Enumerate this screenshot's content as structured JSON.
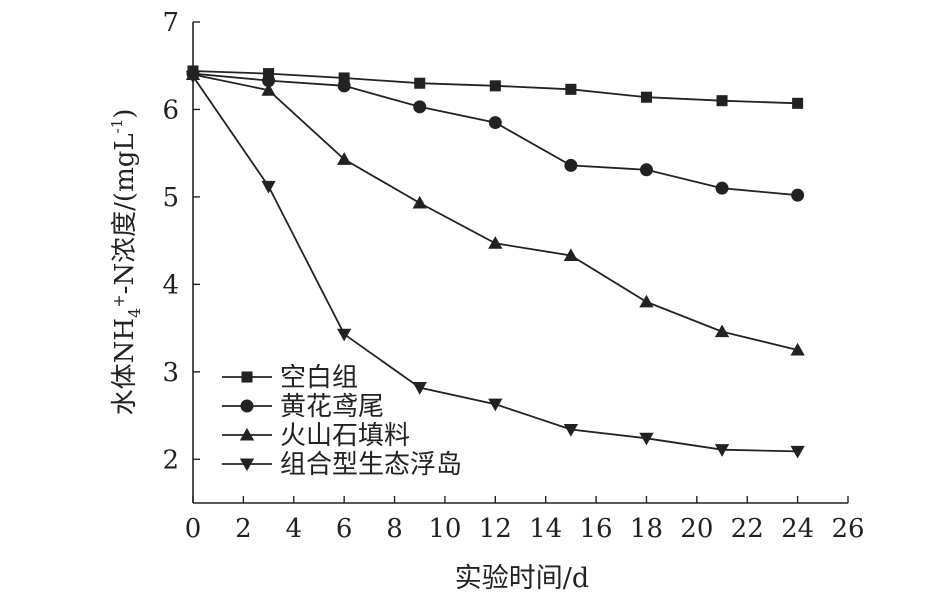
{
  "chart_data": {
    "type": "line",
    "title": "",
    "xlabel": "实验时间/d",
    "ylabel": {
      "prefix": "水体NH",
      "sub": "4",
      "sup": "+",
      "middle": "-N浓度/(mgL",
      "sup2": "-1",
      "suffix": ")"
    },
    "xlim": [
      0,
      26
    ],
    "ylim": [
      1.5,
      7
    ],
    "xticks": [
      0,
      2,
      4,
      6,
      8,
      10,
      12,
      14,
      16,
      18,
      20,
      22,
      24,
      26
    ],
    "yticks": [
      2,
      3,
      4,
      5,
      6,
      7
    ],
    "grid": false,
    "legend_position": "bottom-left",
    "x": [
      0,
      3,
      6,
      9,
      12,
      15,
      18,
      21,
      24
    ],
    "series": [
      {
        "name": "空白组",
        "marker": "square",
        "values": [
          6.44,
          6.41,
          6.36,
          6.3,
          6.27,
          6.23,
          6.14,
          6.1,
          6.07
        ]
      },
      {
        "name": "黄花鸢尾",
        "marker": "circle",
        "values": [
          6.41,
          6.33,
          6.27,
          6.03,
          5.85,
          5.36,
          5.31,
          5.1,
          5.02
        ]
      },
      {
        "name": "火山石填料",
        "marker": "triangle-up",
        "values": [
          6.4,
          6.22,
          5.43,
          4.93,
          4.47,
          4.33,
          3.8,
          3.46,
          3.25
        ]
      },
      {
        "name": "组合型生态浮岛",
        "marker": "triangle-down",
        "values": [
          6.38,
          5.12,
          3.43,
          2.82,
          2.63,
          2.34,
          2.24,
          2.11,
          2.09
        ]
      }
    ],
    "colors": {
      "line": "#222222",
      "axis": "#222222"
    }
  }
}
